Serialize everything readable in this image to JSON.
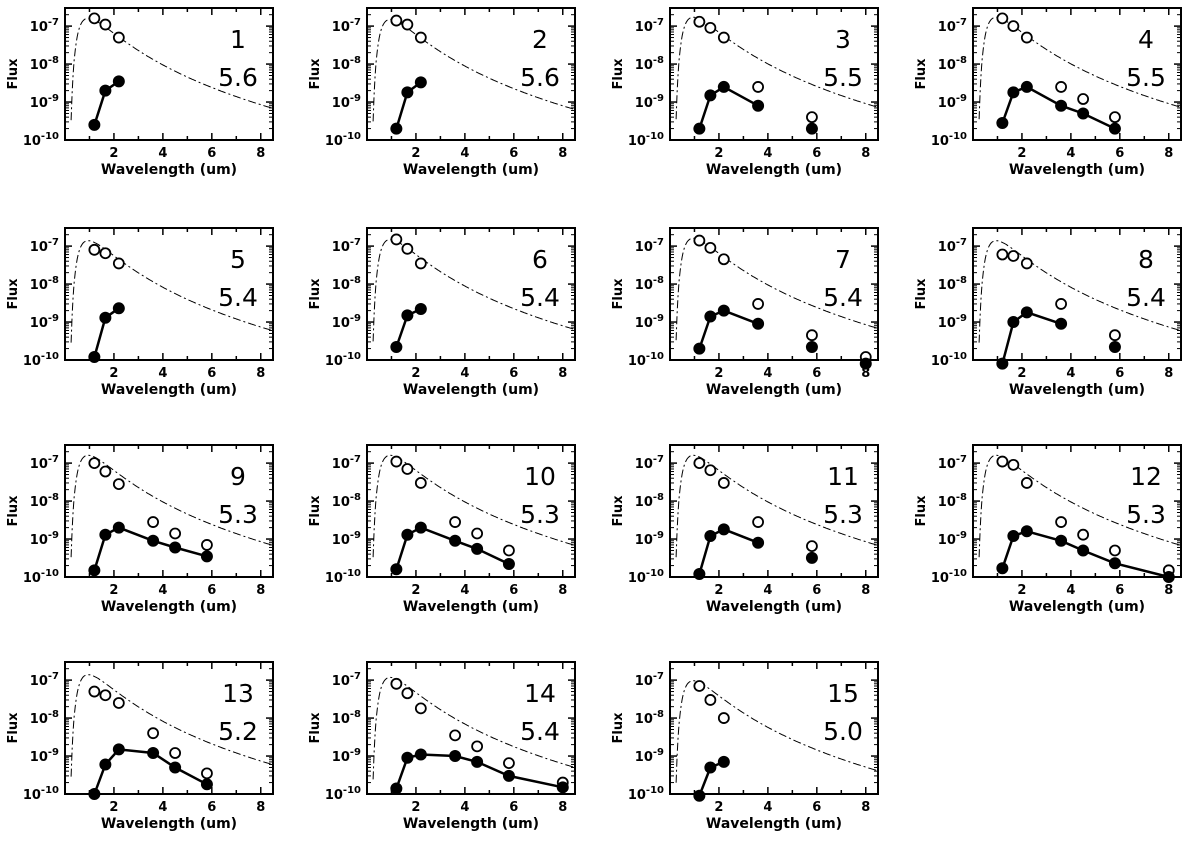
{
  "chart_data": {
    "type": "scatter",
    "figure": "grid of SED panels",
    "xlabel": "Wavelength (um)",
    "ylabel": "Flux",
    "xlim": [
      0,
      8.5
    ],
    "ylim": [
      1e-10,
      3e-07
    ],
    "yscale": "log",
    "x_ticks": [
      2,
      4,
      6,
      8
    ],
    "y_ticks": [
      1e-10,
      1e-09,
      1e-08,
      1e-07
    ],
    "y_tick_labels": [
      "10",
      "10",
      "10",
      "10"
    ],
    "y_tick_exponents": [
      "-10",
      "-9",
      "-8",
      "-7"
    ],
    "grid": false,
    "legend": "none",
    "panels": [
      {
        "id": "1",
        "value": "5.6",
        "model_peak": 1.5e-07,
        "filled": {
          "x": [
            1.2,
            1.65,
            2.2
          ],
          "y": [
            2.5e-10,
            2e-09,
            3.5e-09
          ]
        },
        "open": {
          "x": [
            1.2,
            1.65,
            2.2
          ],
          "y": [
            1.6e-07,
            1.1e-07,
            5e-08
          ]
        }
      },
      {
        "id": "2",
        "value": "5.6",
        "model_peak": 1.4e-07,
        "filled": {
          "x": [
            1.2,
            1.65,
            2.2
          ],
          "y": [
            2e-10,
            1.8e-09,
            3.3e-09
          ]
        },
        "open": {
          "x": [
            1.2,
            1.65,
            2.2
          ],
          "y": [
            1.4e-07,
            1.1e-07,
            5e-08
          ]
        }
      },
      {
        "id": "3",
        "value": "5.5",
        "model_peak": 1.6e-07,
        "filled": {
          "x": [
            1.2,
            1.65,
            2.2,
            3.6
          ],
          "y": [
            2e-10,
            1.5e-09,
            2.5e-09,
            8e-10
          ]
        },
        "filled_extra": {
          "x": [
            5.8
          ],
          "y": [
            2e-10
          ]
        },
        "open": {
          "x": [
            1.2,
            1.65,
            2.2,
            3.6,
            5.8
          ],
          "y": [
            1.3e-07,
            9e-08,
            5e-08,
            2.5e-09,
            4e-10
          ]
        }
      },
      {
        "id": "4",
        "value": "5.5",
        "model_peak": 1.6e-07,
        "filled": {
          "x": [
            1.2,
            1.65,
            2.2,
            3.6,
            4.5,
            5.8
          ],
          "y": [
            2.8e-10,
            1.8e-09,
            2.5e-09,
            8e-10,
            5e-10,
            2e-10
          ]
        },
        "open": {
          "x": [
            1.2,
            1.65,
            2.2,
            3.6,
            4.5,
            5.8
          ],
          "y": [
            1.6e-07,
            1e-07,
            5e-08,
            2.5e-09,
            1.2e-09,
            4e-10
          ]
        }
      },
      {
        "id": "5",
        "value": "5.4",
        "model_peak": 1.3e-07,
        "filled": {
          "x": [
            1.2,
            1.65,
            2.2
          ],
          "y": [
            1.2e-10,
            1.3e-09,
            2.3e-09
          ]
        },
        "open": {
          "x": [
            1.2,
            1.65,
            2.2
          ],
          "y": [
            8e-08,
            6.5e-08,
            3.5e-08
          ]
        }
      },
      {
        "id": "6",
        "value": "5.4",
        "model_peak": 1.4e-07,
        "filled": {
          "x": [
            1.2,
            1.65,
            2.2
          ],
          "y": [
            2.2e-10,
            1.5e-09,
            2.2e-09
          ]
        },
        "open": {
          "x": [
            1.2,
            1.65,
            2.2
          ],
          "y": [
            1.5e-07,
            8.5e-08,
            3.5e-08
          ]
        }
      },
      {
        "id": "7",
        "value": "5.4",
        "model_peak": 1.5e-07,
        "filled": {
          "x": [
            1.2,
            1.65,
            2.2,
            3.6
          ],
          "y": [
            2e-10,
            1.4e-09,
            2e-09,
            9e-10
          ]
        },
        "filled_extra": {
          "x": [
            5.8,
            8.0
          ],
          "y": [
            2.2e-10,
            8e-11
          ]
        },
        "open": {
          "x": [
            1.2,
            1.65,
            2.2,
            3.6,
            5.8,
            8.0
          ],
          "y": [
            1.4e-07,
            9e-08,
            4.5e-08,
            3e-09,
            4.5e-10,
            1.2e-10
          ]
        }
      },
      {
        "id": "8",
        "value": "5.4",
        "model_peak": 1.3e-07,
        "filled": {
          "x": [
            1.2,
            1.65,
            2.2,
            3.6
          ],
          "y": [
            8e-11,
            1e-09,
            1.8e-09,
            9e-10
          ]
        },
        "filled_extra": {
          "x": [
            5.8
          ],
          "y": [
            2.2e-10
          ]
        },
        "open": {
          "x": [
            1.2,
            1.65,
            2.2,
            5.8
          ],
          "y": [
            6e-08,
            5.5e-08,
            3.5e-08,
            4.5e-10
          ]
        },
        "open_extra": {
          "x": [
            3.6
          ],
          "y": [
            3e-09
          ]
        }
      },
      {
        "id": "9",
        "value": "5.3",
        "model_peak": 1.5e-07,
        "filled": {
          "x": [
            1.2,
            1.65,
            2.2,
            3.6,
            4.5,
            5.8
          ],
          "y": [
            1.5e-10,
            1.3e-09,
            2e-09,
            9e-10,
            6e-10,
            3.5e-10
          ]
        },
        "open": {
          "x": [
            1.2,
            1.65,
            2.2,
            3.6,
            4.5,
            5.8
          ],
          "y": [
            1e-07,
            6e-08,
            2.8e-08,
            2.8e-09,
            1.4e-09,
            7e-10
          ]
        }
      },
      {
        "id": "10",
        "value": "5.3",
        "model_peak": 1.5e-07,
        "filled": {
          "x": [
            1.2,
            1.65,
            2.2,
            3.6,
            4.5,
            5.8
          ],
          "y": [
            1.6e-10,
            1.3e-09,
            2e-09,
            9e-10,
            5.5e-10,
            2.2e-10
          ]
        },
        "open": {
          "x": [
            1.2,
            1.65,
            2.2,
            3.6,
            4.5,
            5.8
          ],
          "y": [
            1.1e-07,
            7e-08,
            3e-08,
            2.8e-09,
            1.4e-09,
            5e-10
          ]
        }
      },
      {
        "id": "11",
        "value": "5.3",
        "model_peak": 1.5e-07,
        "filled": {
          "x": [
            1.2,
            1.65,
            2.2,
            3.6
          ],
          "y": [
            1.2e-10,
            1.2e-09,
            1.8e-09,
            8e-10
          ]
        },
        "filled_extra": {
          "x": [
            5.8
          ],
          "y": [
            3.2e-10
          ]
        },
        "open": {
          "x": [
            1.2,
            1.65,
            2.2,
            3.6,
            5.8
          ],
          "y": [
            1e-07,
            6.5e-08,
            3e-08,
            2.8e-09,
            6.5e-10
          ]
        }
      },
      {
        "id": "12",
        "value": "5.3",
        "model_peak": 1.5e-07,
        "filled": {
          "x": [
            1.2,
            1.65,
            2.2,
            3.6,
            4.5,
            5.8,
            8.0
          ],
          "y": [
            1.7e-10,
            1.2e-09,
            1.6e-09,
            9e-10,
            5e-10,
            2.3e-10,
            1e-10
          ]
        },
        "open": {
          "x": [
            1.2,
            1.65,
            2.2,
            3.6,
            4.5,
            5.8,
            8.0
          ],
          "y": [
            1.1e-07,
            9e-08,
            3e-08,
            2.8e-09,
            1.3e-09,
            5e-10,
            1.5e-10
          ]
        }
      },
      {
        "id": "13",
        "value": "5.2",
        "model_peak": 1.3e-07,
        "filled": {
          "x": [
            1.2,
            1.65,
            2.2,
            3.6,
            4.5,
            5.8
          ],
          "y": [
            1e-10,
            6e-10,
            1.5e-09,
            1.2e-09,
            5e-10,
            1.8e-10
          ]
        },
        "open": {
          "x": [
            1.2,
            1.65,
            2.2,
            3.6,
            4.5,
            5.8
          ],
          "y": [
            5e-08,
            4e-08,
            2.5e-08,
            4e-09,
            1.2e-09,
            3.5e-10
          ]
        }
      },
      {
        "id": "14",
        "value": "5.4",
        "model_peak": 1.1e-07,
        "filled": {
          "x": [
            1.2,
            1.65,
            2.2,
            3.6,
            4.5,
            5.8,
            8.0
          ],
          "y": [
            1.4e-10,
            9e-10,
            1.1e-09,
            1e-09,
            7e-10,
            3e-10,
            1.5e-10
          ]
        },
        "open": {
          "x": [
            1.2,
            1.65,
            2.2,
            3.6,
            4.5,
            5.8,
            8.0
          ],
          "y": [
            8e-08,
            4.5e-08,
            1.8e-08,
            3.5e-09,
            1.8e-09,
            6.5e-10,
            2e-10
          ]
        }
      },
      {
        "id": "15",
        "value": "5.0",
        "model_peak": 9e-08,
        "filled": {
          "x": [
            1.2,
            1.65,
            2.2
          ],
          "y": [
            9e-11,
            5e-10,
            7e-10
          ]
        },
        "open": {
          "x": [
            1.2,
            1.65,
            2.2
          ],
          "y": [
            7e-08,
            3e-08,
            1e-08
          ]
        }
      }
    ]
  }
}
